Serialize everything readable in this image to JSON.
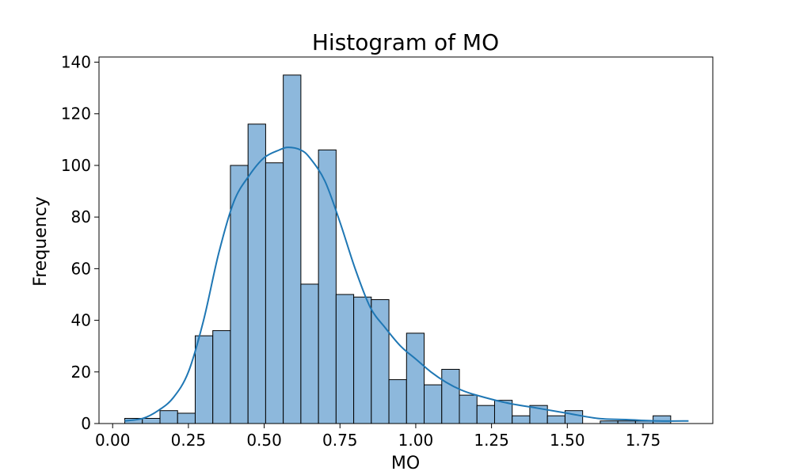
{
  "chart_data": {
    "type": "bar",
    "title": "Histogram of MO",
    "xlabel": "MO",
    "ylabel": "Frequency",
    "xlim": [
      -0.045,
      1.98
    ],
    "ylim": [
      0,
      142
    ],
    "xticks": [
      0.0,
      0.25,
      0.5,
      0.75,
      1.0,
      1.25,
      1.5,
      1.75
    ],
    "xtick_labels": [
      "0.00",
      "0.25",
      "0.50",
      "0.75",
      "1.00",
      "1.25",
      "1.50",
      "1.75"
    ],
    "yticks": [
      0,
      20,
      40,
      60,
      80,
      100,
      120,
      140
    ],
    "ytick_labels": [
      "0",
      "20",
      "40",
      "60",
      "80",
      "100",
      "120",
      "140"
    ],
    "bin_start": 0.04,
    "bin_width": 0.0581,
    "values": [
      2,
      2,
      5,
      4,
      34,
      36,
      100,
      116,
      101,
      135,
      54,
      106,
      50,
      49,
      48,
      17,
      35,
      15,
      21,
      11,
      7,
      9,
      3,
      7,
      3,
      5,
      0,
      1,
      1,
      1,
      3
    ],
    "kde": {
      "x": [
        0.04,
        0.1,
        0.15,
        0.2,
        0.25,
        0.3,
        0.35,
        0.4,
        0.45,
        0.5,
        0.55,
        0.58,
        0.62,
        0.65,
        0.7,
        0.75,
        0.8,
        0.85,
        0.9,
        0.95,
        1.0,
        1.05,
        1.1,
        1.15,
        1.2,
        1.3,
        1.4,
        1.5,
        1.6,
        1.7,
        1.8,
        1.9
      ],
      "y": [
        1,
        2,
        5,
        10,
        20,
        40,
        66,
        86,
        96,
        103,
        106,
        107,
        106,
        103,
        94,
        78,
        60,
        45,
        37,
        30,
        25,
        20,
        16,
        13,
        11,
        8,
        6,
        4,
        2,
        1.5,
        1,
        1
      ]
    },
    "bar_fill": "#8db8dc",
    "bar_stroke": "#000000",
    "kde_color": "#1f77b4",
    "grid": false,
    "legend": "none"
  }
}
